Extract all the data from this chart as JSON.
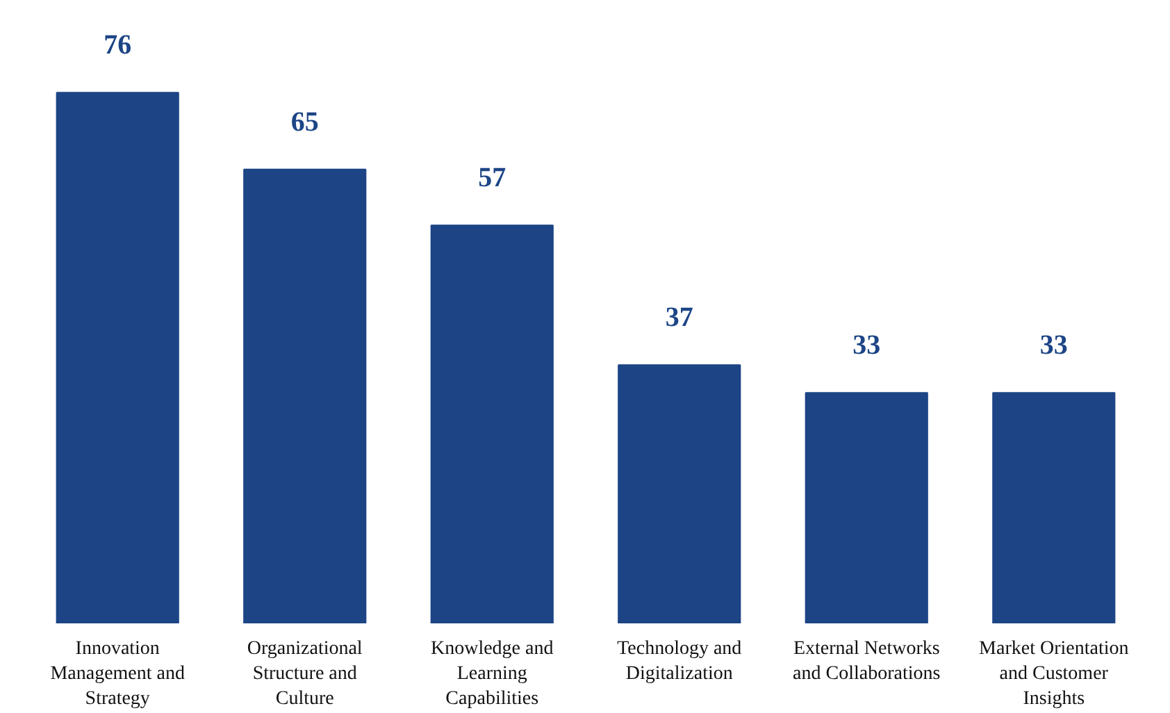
{
  "chart_data": {
    "type": "bar",
    "categories": [
      "Innovation Management and Strategy",
      "Organizational Structure and Culture",
      "Knowledge and Learning Capabilities",
      "Technology and Digitalization",
      "External Networks and Collaborations",
      "Market Orientation and Customer Insights"
    ],
    "values": [
      76,
      65,
      57,
      37,
      33,
      33
    ],
    "color": "#1d4586",
    "data_labels": true
  }
}
